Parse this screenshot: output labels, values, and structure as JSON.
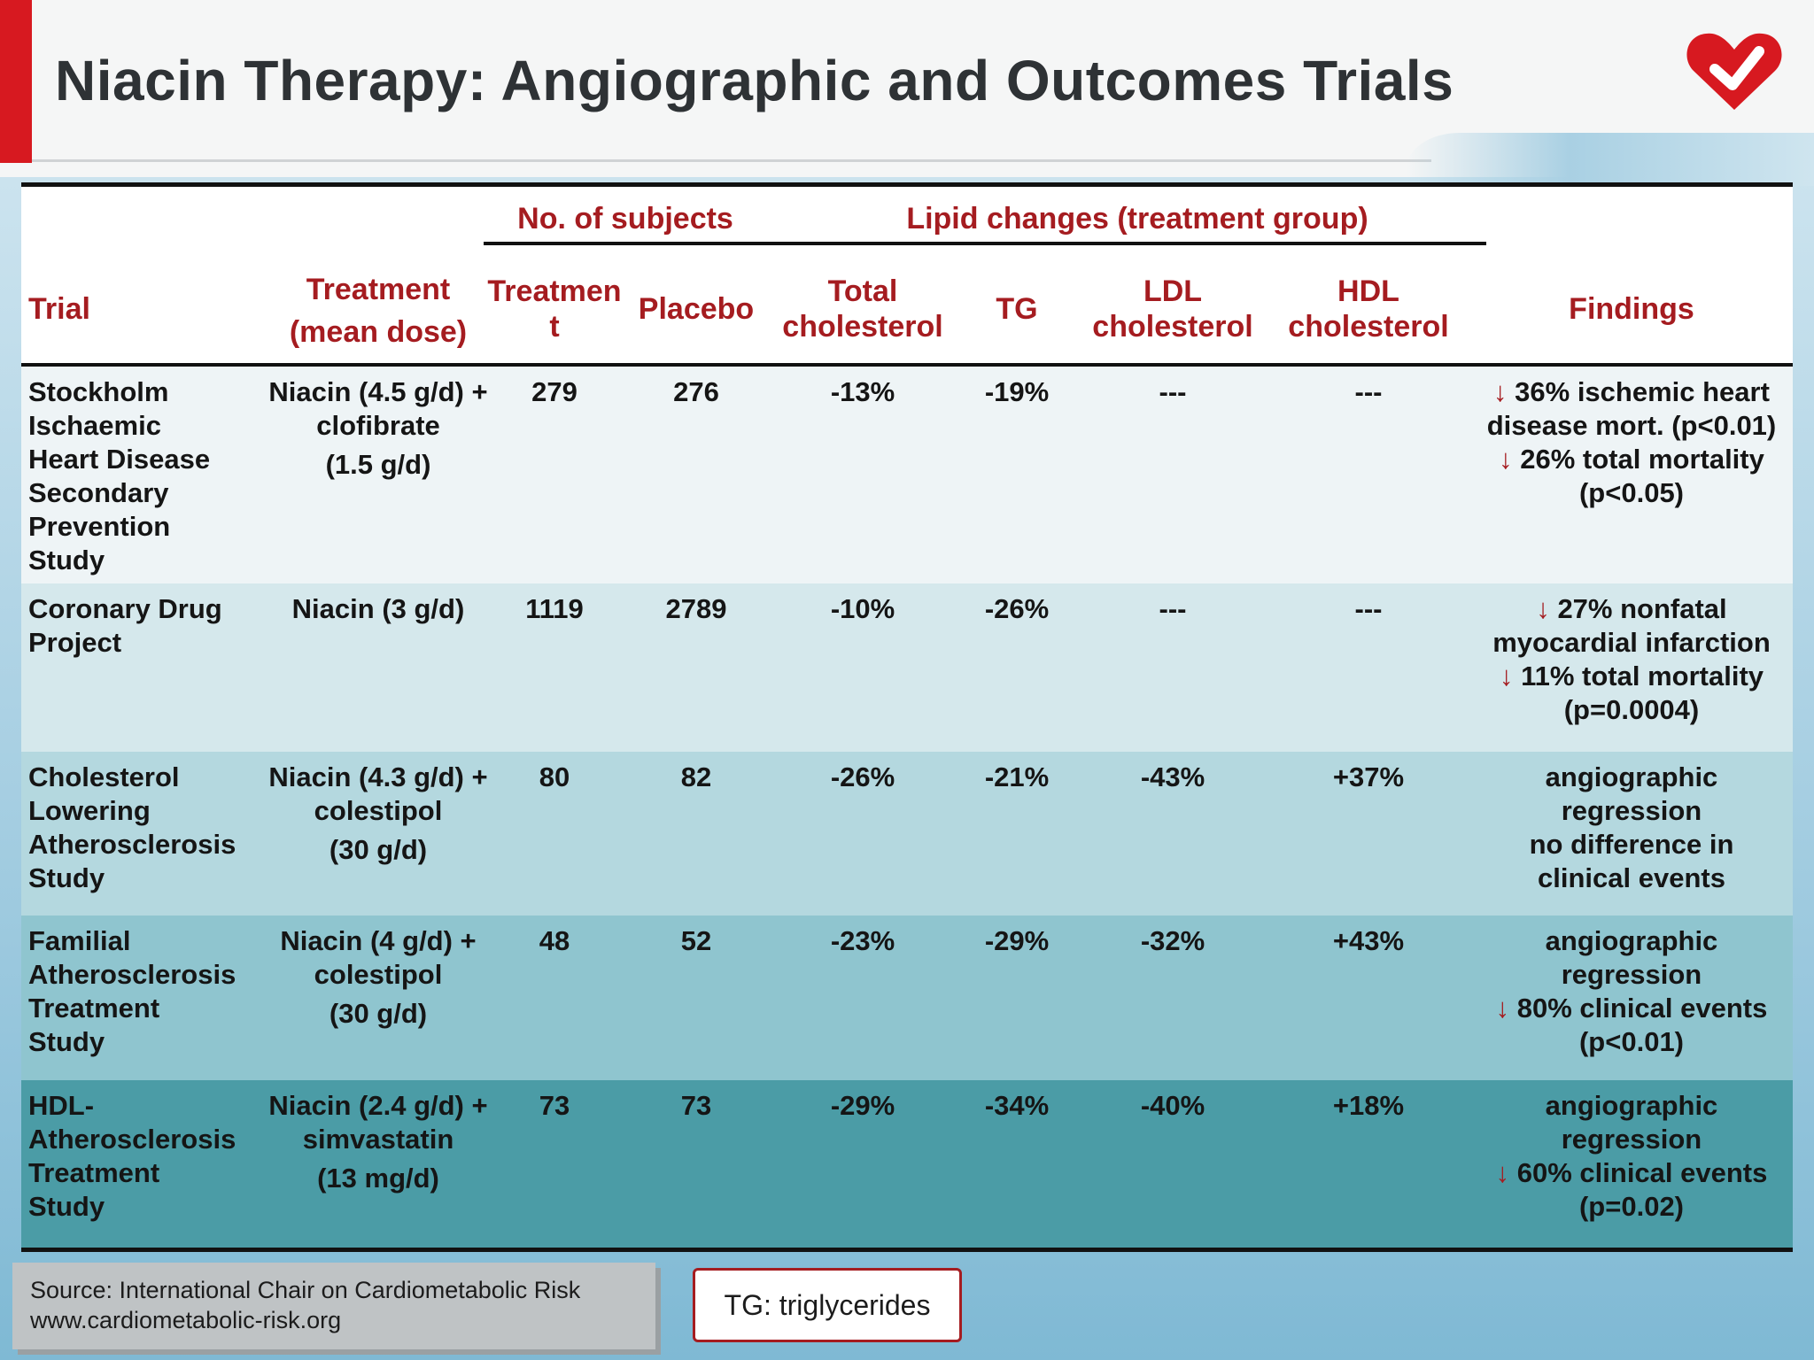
{
  "title": "Niacin Therapy: Angiographic and Outcomes Trials",
  "colors": {
    "accent_red": "#a51c20",
    "brand_red": "#d71920",
    "row_backgrounds": [
      "#eef4f6",
      "#d5e8ec",
      "#b4d8df",
      "#8fc5cf",
      "#4b9ca6"
    ]
  },
  "table": {
    "headers": {
      "trial": "Trial",
      "treatment_line1": "Treatment",
      "treatment_line2": "(mean dose)",
      "group_subjects": "No. of subjects",
      "group_lipid": "Lipid changes (treatment group)",
      "treatment_group_line1": "Treatmen",
      "treatment_group_line2": "t",
      "placebo": "Placebo",
      "total_chol_line1": "Total",
      "total_chol_line2": "cholesterol",
      "tg": "TG",
      "ldl_line1": "LDL",
      "ldl_line2": "cholesterol",
      "hdl_line1": "HDL",
      "hdl_line2": "cholesterol",
      "findings": "Findings"
    },
    "rows": [
      {
        "trial": [
          "Stockholm",
          "Ischaemic",
          "Heart Disease",
          "Secondary",
          "Prevention",
          "Study"
        ],
        "treatment": [
          "Niacin (4.5 g/d) +",
          "clofibrate",
          "(1.5 g/d)"
        ],
        "treatment_n": "279",
        "placebo_n": "276",
        "total_chol": "-13%",
        "tg": "-19%",
        "ldl": "---",
        "hdl": "---",
        "findings": [
          {
            "arrow": "↓",
            "text": " 36% ischemic heart"
          },
          {
            "arrow": "",
            "text": "disease mort. (p<0.01)"
          },
          {
            "arrow": "↓",
            "text": " 26% total mortality"
          },
          {
            "arrow": "",
            "text": "(p<0.05)"
          }
        ]
      },
      {
        "trial": [
          "Coronary Drug",
          "Project"
        ],
        "treatment": [
          "Niacin (3 g/d)"
        ],
        "treatment_n": "1119",
        "placebo_n": "2789",
        "total_chol": "-10%",
        "tg": "-26%",
        "ldl": "---",
        "hdl": "---",
        "findings": [
          {
            "arrow": "↓",
            "text": " 27% nonfatal"
          },
          {
            "arrow": "",
            "text": "myocardial infarction"
          },
          {
            "arrow": "↓",
            "text": " 11% total mortality"
          },
          {
            "arrow": "",
            "text": "(p=0.0004)"
          }
        ]
      },
      {
        "trial": [
          "Cholesterol",
          "Lowering",
          "Atherosclerosis",
          "Study"
        ],
        "treatment": [
          "Niacin (4.3 g/d) +",
          "colestipol",
          "(30 g/d)"
        ],
        "treatment_n": "80",
        "placebo_n": "82",
        "total_chol": "-26%",
        "tg": "-21%",
        "ldl": "-43%",
        "hdl": "+37%",
        "findings": [
          {
            "arrow": "",
            "text": "angiographic"
          },
          {
            "arrow": "",
            "text": "regression"
          },
          {
            "arrow": "",
            "text": "no difference in"
          },
          {
            "arrow": "",
            "text": "clinical events"
          }
        ]
      },
      {
        "trial": [
          "Familial",
          "Atherosclerosis",
          "Treatment",
          "Study"
        ],
        "treatment": [
          "Niacin (4 g/d) +",
          "colestipol",
          "(30 g/d)"
        ],
        "treatment_n": "48",
        "placebo_n": "52",
        "total_chol": "-23%",
        "tg": "-29%",
        "ldl": "-32%",
        "hdl": "+43%",
        "findings": [
          {
            "arrow": "",
            "text": "angiographic"
          },
          {
            "arrow": "",
            "text": "regression"
          },
          {
            "arrow": "↓",
            "text": " 80% clinical events"
          },
          {
            "arrow": "",
            "text": "(p<0.01)"
          }
        ]
      },
      {
        "trial": [
          "HDL-",
          "Atherosclerosis",
          "Treatment",
          "Study"
        ],
        "treatment": [
          "Niacin (2.4 g/d) +",
          "simvastatin",
          "(13 mg/d)"
        ],
        "treatment_n": "73",
        "placebo_n": "73",
        "total_chol": "-29%",
        "tg": "-34%",
        "ldl": "-40%",
        "hdl": "+18%",
        "findings": [
          {
            "arrow": "",
            "text": "angiographic"
          },
          {
            "arrow": "",
            "text": "regression"
          },
          {
            "arrow": "↓",
            "text": " 60% clinical events"
          },
          {
            "arrow": "",
            "text": "(p=0.02)"
          }
        ]
      }
    ]
  },
  "source": {
    "line1": "Source: International Chair on Cardiometabolic Risk",
    "line2": "www.cardiometabolic-risk.org"
  },
  "legend": "TG: triglycerides",
  "logo_icon": "heart-check-logo-icon"
}
